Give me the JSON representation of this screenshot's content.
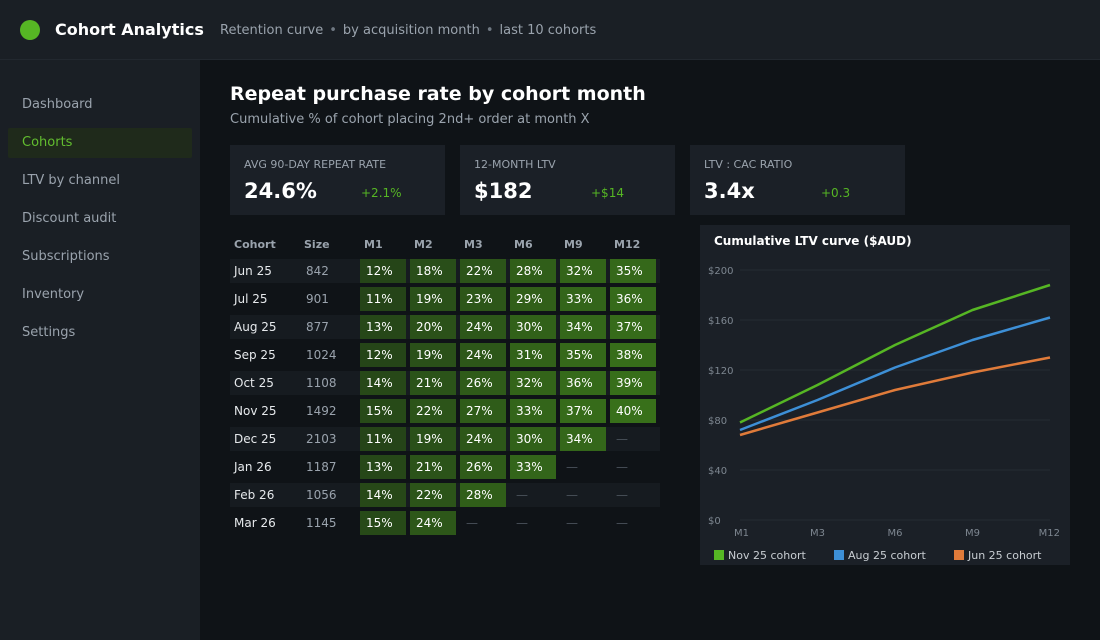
{
  "app": {
    "title": "Cohort Analytics",
    "logo_color": "#56b624"
  },
  "breadcrumbs": [
    "Retention curve",
    "by acquisition month",
    "last 10 cohorts"
  ],
  "sidebar": {
    "items": [
      {
        "label": "Dashboard",
        "active": false
      },
      {
        "label": "Cohorts",
        "active": true
      },
      {
        "label": "LTV by channel",
        "active": false
      },
      {
        "label": "Discount audit",
        "active": false
      },
      {
        "label": "Subscriptions",
        "active": false
      },
      {
        "label": "Inventory",
        "active": false
      },
      {
        "label": "Settings",
        "active": false
      }
    ]
  },
  "page": {
    "title": "Repeat purchase rate by cohort month",
    "subtitle": "Cumulative % of cohort placing 2nd+ order at month X"
  },
  "kpis": [
    {
      "label": "AVG 90-DAY REPEAT RATE",
      "value": "24.6%",
      "delta": "+2.1%"
    },
    {
      "label": "12-MONTH LTV",
      "value": "$182",
      "delta": "+$14"
    },
    {
      "label": "LTV : CAC RATIO",
      "value": "3.4x",
      "delta": "+0.3"
    }
  ],
  "table": {
    "headers": [
      "Cohort",
      "Size",
      "M1",
      "M2",
      "M3",
      "M6",
      "M9",
      "M12"
    ],
    "empty_marker": "—",
    "rows": [
      {
        "cohort": "Jun 25",
        "size": "842",
        "values": [
          "12%",
          "18%",
          "22%",
          "28%",
          "32%",
          "35%"
        ]
      },
      {
        "cohort": "Jul 25",
        "size": "901",
        "values": [
          "11%",
          "19%",
          "23%",
          "29%",
          "33%",
          "36%"
        ]
      },
      {
        "cohort": "Aug 25",
        "size": "877",
        "values": [
          "13%",
          "20%",
          "24%",
          "30%",
          "34%",
          "37%"
        ]
      },
      {
        "cohort": "Sep 25",
        "size": "1024",
        "values": [
          "12%",
          "19%",
          "24%",
          "31%",
          "35%",
          "38%"
        ]
      },
      {
        "cohort": "Oct 25",
        "size": "1108",
        "values": [
          "14%",
          "21%",
          "26%",
          "32%",
          "36%",
          "39%"
        ]
      },
      {
        "cohort": "Nov 25",
        "size": "1492",
        "values": [
          "15%",
          "22%",
          "27%",
          "33%",
          "37%",
          "40%"
        ]
      },
      {
        "cohort": "Dec 25",
        "size": "2103",
        "values": [
          "11%",
          "19%",
          "24%",
          "30%",
          "34%",
          null
        ]
      },
      {
        "cohort": "Jan 26",
        "size": "1187",
        "values": [
          "13%",
          "21%",
          "26%",
          "33%",
          null,
          null
        ]
      },
      {
        "cohort": "Feb 26",
        "size": "1056",
        "values": [
          "14%",
          "22%",
          "28%",
          null,
          null,
          null
        ]
      },
      {
        "cohort": "Mar 26",
        "size": "1145",
        "values": [
          "15%",
          "24%",
          null,
          null,
          null,
          null
        ]
      }
    ]
  },
  "chart_data": {
    "type": "line",
    "title": "Cumulative LTV curve ($AUD)",
    "categories": [
      "M1",
      "M3",
      "M6",
      "M9",
      "M12"
    ],
    "ylim": [
      0,
      200
    ],
    "yticks": [
      0,
      40,
      80,
      120,
      160,
      200
    ],
    "ytick_labels": [
      "$0",
      "$40",
      "$80",
      "$120",
      "$160",
      "$200"
    ],
    "grid": true,
    "legend": "bottom",
    "series": [
      {
        "name": "Nov 25 cohort",
        "color": "#56b624",
        "values": [
          78,
          108,
          140,
          168,
          188
        ]
      },
      {
        "name": "Aug 25 cohort",
        "color": "#3d8fd6",
        "values": [
          72,
          96,
          122,
          144,
          162
        ]
      },
      {
        "name": "Jun 25 cohort",
        "color": "#e07b3a",
        "values": [
          68,
          86,
          104,
          118,
          130
        ]
      }
    ]
  }
}
